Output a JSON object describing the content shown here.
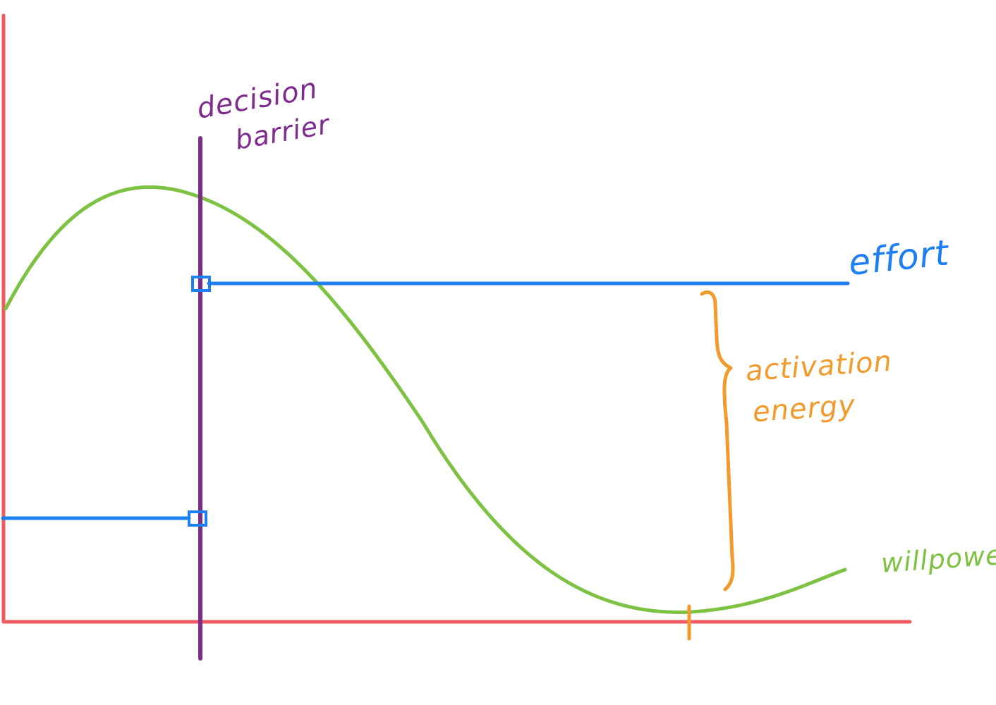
{
  "labels": {
    "decision_line1": "decision",
    "decision_line2": "barrier",
    "effort": "effort",
    "activation_line1": "activation",
    "activation_line2": "energy",
    "willpower": "willpower"
  },
  "colors": {
    "axes": "#ee5a5f",
    "willpower": "#7dc242",
    "effort": "#1d7ff2",
    "decision_barrier": "#7e2b8e",
    "activation_energy": "#f39a2d"
  }
}
